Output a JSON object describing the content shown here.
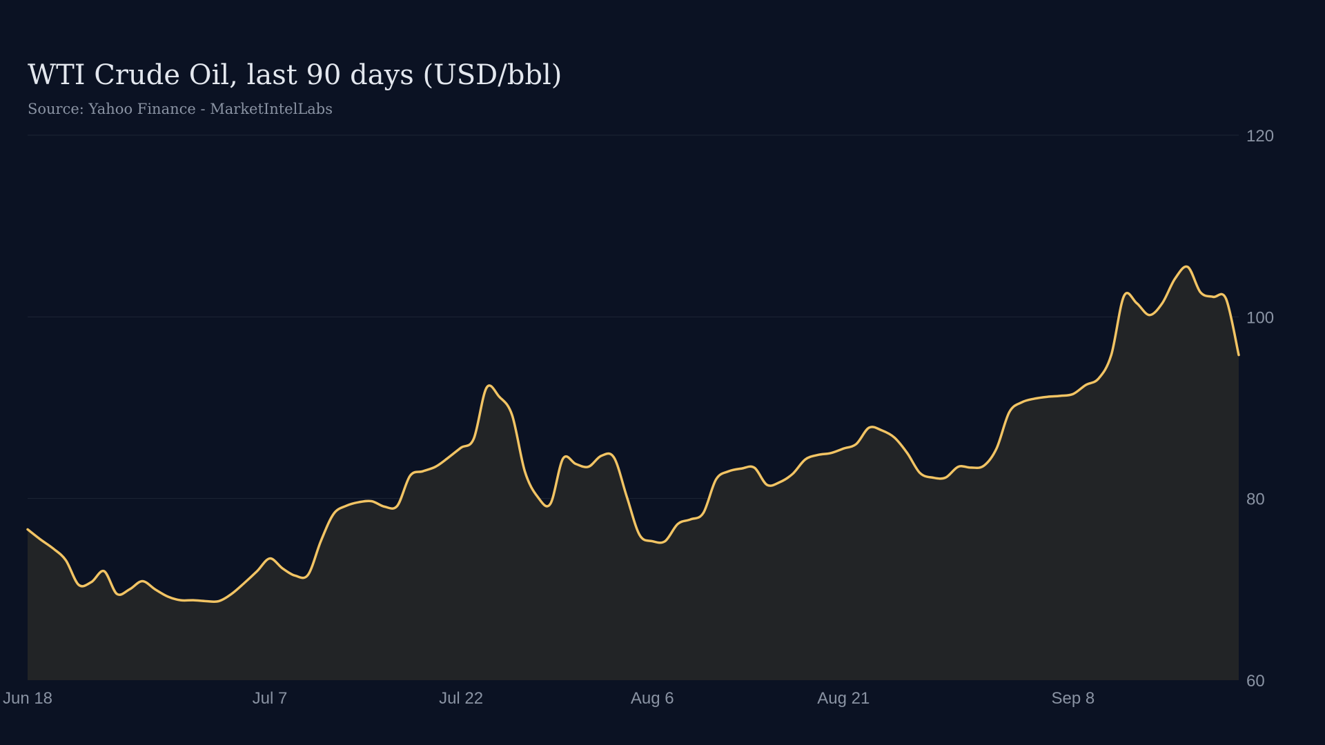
{
  "chart_data": {
    "type": "area",
    "title": "WTI Crude Oil, last 90 days (USD/bbl)",
    "subtitle": "Source: Yahoo Finance - MarketIntelLabs",
    "xlabel": "",
    "ylabel": "",
    "ylim": [
      60,
      120
    ],
    "y_ticks": [
      60,
      80,
      100,
      120
    ],
    "y_axis_position": "right",
    "grid": "horizontal",
    "x_ticks": [
      {
        "index": 0,
        "label": "Jun 18"
      },
      {
        "index": 19,
        "label": "Jul  7"
      },
      {
        "index": 34,
        "label": "Jul 22"
      },
      {
        "index": 49,
        "label": "Aug  6"
      },
      {
        "index": 64,
        "label": "Aug 21"
      },
      {
        "index": 82,
        "label": "Sep  8"
      }
    ],
    "colors": {
      "line": "#f2c464",
      "fill": "#222426",
      "grid": "#1e2636",
      "background": "#0b1223"
    },
    "values": [
      76.6,
      75.5,
      74.5,
      73.2,
      70.5,
      70.8,
      72.0,
      69.5,
      70.0,
      70.9,
      70.0,
      69.2,
      68.8,
      68.8,
      68.7,
      68.7,
      69.5,
      70.7,
      72.0,
      73.4,
      72.3,
      71.5,
      71.6,
      75.3,
      78.3,
      79.2,
      79.6,
      79.7,
      79.1,
      79.2,
      82.5,
      83.0,
      83.5,
      84.5,
      85.6,
      86.6,
      92.2,
      91.2,
      89.2,
      83.0,
      80.2,
      79.4,
      84.4,
      83.8,
      83.5,
      84.7,
      84.5,
      80.2,
      76.0,
      75.3,
      75.3,
      77.2,
      77.7,
      78.4,
      82.1,
      83.0,
      83.3,
      83.4,
      81.5,
      81.8,
      82.7,
      84.3,
      84.8,
      85.0,
      85.5,
      86.0,
      87.8,
      87.5,
      86.7,
      85.0,
      82.8,
      82.3,
      82.3,
      83.5,
      83.4,
      83.6,
      85.5,
      89.5,
      90.6,
      91.0,
      91.2,
      91.3,
      91.5,
      92.5,
      93.2,
      95.8,
      102.3,
      101.5,
      100.2,
      101.5,
      104.2,
      105.5,
      102.7,
      102.2,
      102.0,
      95.8
    ]
  }
}
